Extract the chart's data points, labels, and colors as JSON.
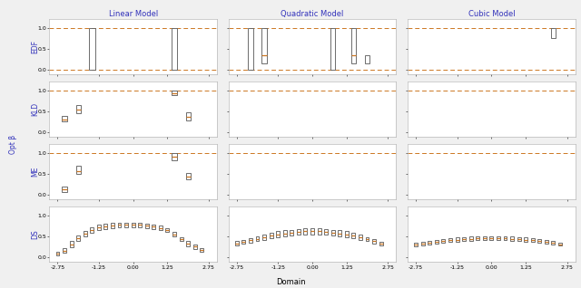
{
  "col_titles": [
    "Linear Model",
    "Quadratic Model",
    "Cubic Model"
  ],
  "row_labels": [
    "EDF",
    "KLD",
    "ME",
    "DS"
  ],
  "ylabel_center": "Opt β",
  "xlabel": "Domain",
  "xticks": [
    -2.75,
    -1.25,
    0.0,
    1.25,
    2.75
  ],
  "xtick_labels": [
    "-2.75",
    "-1.25",
    "0.00",
    "1.25",
    "2.75"
  ],
  "title_color": "#3333bb",
  "row_label_color": "#3333bb",
  "dashed_line_color": "#cc7722",
  "box_edge_color": "#555555",
  "box_median_color": "#cc7722",
  "background_color": "#f0f0f0",
  "panel_background": "#ffffff",
  "edf_ylim": [
    -0.12,
    1.22
  ],
  "kld_ylim": [
    -0.12,
    1.22
  ],
  "me_ylim": [
    -0.12,
    1.22
  ],
  "ds_ylim": [
    -0.12,
    1.22
  ],
  "yticks": [
    0.0,
    0.5,
    1.0
  ],
  "edf_linear_boxes": {
    "x": [
      -1.5,
      1.5
    ],
    "q1": [
      0.0,
      0.0
    ],
    "q3": [
      1.0,
      1.0
    ],
    "median": [
      null,
      null
    ]
  },
  "edf_quadratic_boxes": {
    "x": [
      -2.25,
      -1.75,
      0.75,
      1.5,
      2.0
    ],
    "q1": [
      0.0,
      0.15,
      0.0,
      0.15,
      0.15
    ],
    "q3": [
      1.0,
      1.0,
      1.0,
      1.0,
      0.35
    ],
    "median": [
      null,
      0.35,
      null,
      0.35,
      null
    ]
  },
  "edf_cubic_boxes": {
    "x": [
      2.25
    ],
    "q1": [
      0.75
    ],
    "q3": [
      1.0
    ],
    "median": [
      null
    ]
  },
  "kld_linear_boxes": {
    "x": [
      -2.5,
      -2.0,
      1.5,
      2.0
    ],
    "q1": [
      0.25,
      0.45,
      0.88,
      0.27
    ],
    "q3": [
      0.38,
      0.65,
      1.0,
      0.47
    ],
    "median": [
      0.3,
      0.55,
      0.94,
      0.37
    ]
  },
  "kld_quadratic_boxes": {
    "x": [],
    "q1": [],
    "q3": [],
    "median": []
  },
  "kld_cubic_boxes": {
    "x": [],
    "q1": [],
    "q3": [],
    "median": []
  },
  "me_linear_boxes": {
    "x": [
      -2.5,
      -2.0,
      1.5,
      2.0
    ],
    "q1": [
      0.07,
      0.5,
      0.82,
      0.37
    ],
    "q3": [
      0.2,
      0.7,
      1.0,
      0.52
    ],
    "median": [
      0.13,
      0.57,
      0.9,
      0.43
    ]
  },
  "me_quadratic_boxes": {
    "x": [],
    "q1": [],
    "q3": [],
    "median": []
  },
  "me_cubic_boxes": {
    "x": [],
    "q1": [],
    "q3": [],
    "median": []
  },
  "ds_x": [
    -2.75,
    -2.5,
    -2.25,
    -2.0,
    -1.75,
    -1.5,
    -1.25,
    -1.0,
    -0.75,
    -0.5,
    -0.25,
    0.0,
    0.25,
    0.5,
    0.75,
    1.0,
    1.25,
    1.5,
    1.75,
    2.0,
    2.25,
    2.5
  ],
  "ds_linear_q1": [
    0.05,
    0.11,
    0.24,
    0.38,
    0.5,
    0.58,
    0.65,
    0.67,
    0.7,
    0.71,
    0.72,
    0.72,
    0.72,
    0.7,
    0.68,
    0.65,
    0.6,
    0.5,
    0.38,
    0.26,
    0.2,
    0.13
  ],
  "ds_linear_q3": [
    0.13,
    0.21,
    0.38,
    0.52,
    0.62,
    0.72,
    0.78,
    0.8,
    0.82,
    0.82,
    0.82,
    0.82,
    0.82,
    0.8,
    0.78,
    0.75,
    0.7,
    0.6,
    0.48,
    0.38,
    0.3,
    0.22
  ],
  "ds_linear_med": [
    0.09,
    0.16,
    0.31,
    0.45,
    0.56,
    0.65,
    0.71,
    0.74,
    0.76,
    0.77,
    0.77,
    0.77,
    0.77,
    0.75,
    0.73,
    0.7,
    0.65,
    0.55,
    0.43,
    0.32,
    0.25,
    0.175
  ],
  "ds_quadratic_q1": [
    0.28,
    0.32,
    0.35,
    0.38,
    0.42,
    0.45,
    0.48,
    0.5,
    0.52,
    0.54,
    0.55,
    0.55,
    0.55,
    0.54,
    0.52,
    0.5,
    0.48,
    0.45,
    0.42,
    0.38,
    0.33,
    0.27
  ],
  "ds_quadratic_q3": [
    0.38,
    0.42,
    0.46,
    0.5,
    0.54,
    0.58,
    0.62,
    0.64,
    0.66,
    0.68,
    0.69,
    0.69,
    0.69,
    0.68,
    0.66,
    0.64,
    0.62,
    0.58,
    0.54,
    0.48,
    0.43,
    0.37
  ],
  "ds_quadratic_med": [
    0.33,
    0.37,
    0.4,
    0.44,
    0.48,
    0.51,
    0.55,
    0.57,
    0.59,
    0.61,
    0.62,
    0.62,
    0.62,
    0.61,
    0.59,
    0.57,
    0.55,
    0.51,
    0.48,
    0.43,
    0.38,
    0.32
  ],
  "ds_cubic_q1": [
    0.26,
    0.28,
    0.3,
    0.32,
    0.34,
    0.36,
    0.37,
    0.38,
    0.39,
    0.4,
    0.4,
    0.4,
    0.4,
    0.4,
    0.39,
    0.38,
    0.37,
    0.36,
    0.34,
    0.32,
    0.3,
    0.27
  ],
  "ds_cubic_q3": [
    0.34,
    0.36,
    0.39,
    0.42,
    0.44,
    0.46,
    0.47,
    0.48,
    0.49,
    0.5,
    0.5,
    0.5,
    0.5,
    0.5,
    0.49,
    0.48,
    0.47,
    0.46,
    0.44,
    0.42,
    0.39,
    0.35
  ],
  "ds_cubic_med": [
    0.3,
    0.32,
    0.34,
    0.37,
    0.39,
    0.41,
    0.42,
    0.43,
    0.44,
    0.45,
    0.45,
    0.45,
    0.45,
    0.45,
    0.44,
    0.43,
    0.42,
    0.41,
    0.39,
    0.37,
    0.34,
    0.31
  ]
}
